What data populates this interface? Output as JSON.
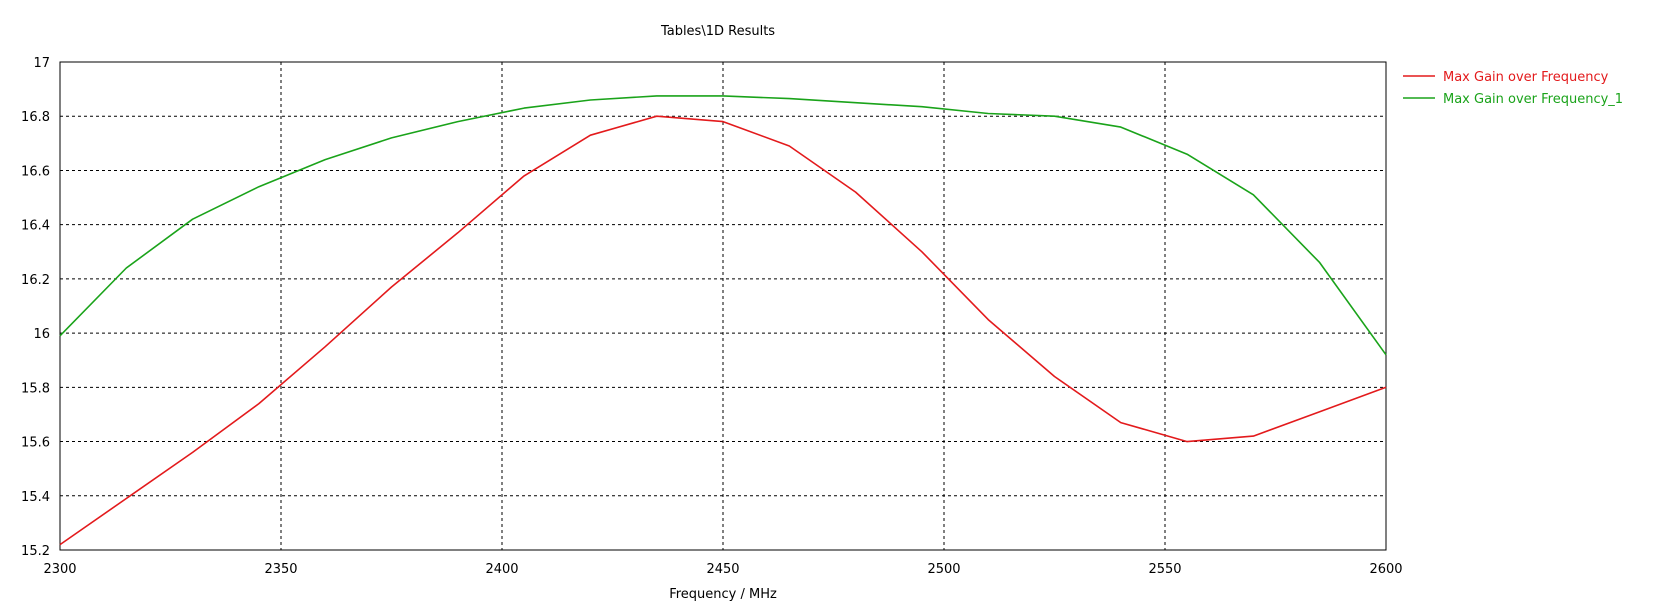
{
  "chart_data": {
    "type": "line",
    "title": "Tables\\1D Results",
    "xlabel": "Frequency / MHz",
    "ylabel": "",
    "xlim": [
      2300,
      2600
    ],
    "ylim": [
      15.2,
      17
    ],
    "x_ticks": [
      2300,
      2350,
      2400,
      2450,
      2500,
      2550,
      2600
    ],
    "x_tick_labels": [
      "2300",
      "2350",
      "2400",
      "2450",
      "2500",
      "2550",
      "2600"
    ],
    "y_ticks": [
      15.2,
      15.4,
      15.6,
      15.8,
      16,
      16.2,
      16.4,
      16.6,
      16.8,
      17
    ],
    "y_tick_labels": [
      "15.2",
      "15.4",
      "15.6",
      "15.8",
      "16",
      "16.2",
      "16.4",
      "16.6",
      "16.8",
      "17"
    ],
    "grid": true,
    "legend": "right",
    "series": [
      {
        "name": "Max Gain over Frequency",
        "color": "#e31a1c",
        "x": [
          2300,
          2315,
          2330,
          2345,
          2360,
          2375,
          2390,
          2405,
          2420,
          2435,
          2450,
          2465,
          2480,
          2495,
          2510,
          2525,
          2540,
          2555,
          2570,
          2585,
          2600
        ],
        "y": [
          15.22,
          15.39,
          15.56,
          15.74,
          15.95,
          16.17,
          16.37,
          16.58,
          16.73,
          16.8,
          16.78,
          16.69,
          16.52,
          16.3,
          16.05,
          15.84,
          15.67,
          15.6,
          15.62,
          15.71,
          15.8
        ]
      },
      {
        "name": "Max Gain over Frequency_1",
        "color": "#1aa31a",
        "x": [
          2300,
          2315,
          2330,
          2345,
          2360,
          2375,
          2390,
          2405,
          2420,
          2435,
          2450,
          2465,
          2480,
          2495,
          2510,
          2525,
          2540,
          2555,
          2570,
          2585,
          2600
        ],
        "y": [
          15.99,
          16.24,
          16.42,
          16.54,
          16.64,
          16.72,
          16.78,
          16.83,
          16.86,
          16.875,
          16.875,
          16.865,
          16.85,
          16.835,
          16.81,
          16.8,
          16.76,
          16.66,
          16.51,
          16.26,
          15.92
        ]
      }
    ]
  }
}
